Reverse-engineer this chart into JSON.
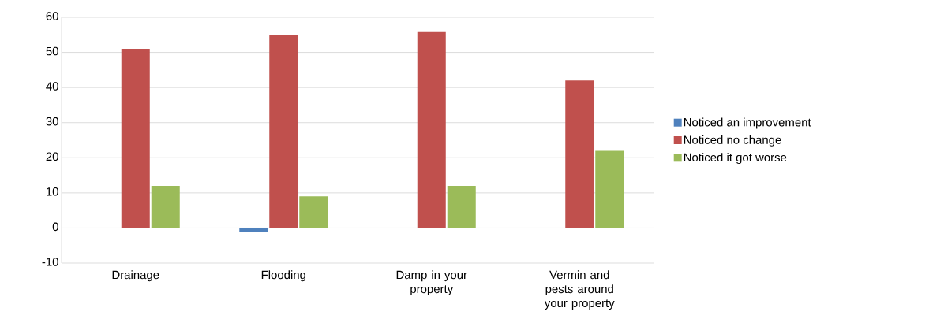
{
  "chart_data": {
    "type": "bar",
    "categories": [
      "Drainage",
      "Flooding",
      "Damp in your property",
      "Vermin and pests around your property"
    ],
    "series": [
      {
        "name": "Noticed an improvement",
        "color": "#4f81bd",
        "values": [
          0,
          -1,
          0,
          0
        ]
      },
      {
        "name": "Noticed no change",
        "color": "#c0504d",
        "values": [
          51,
          55,
          56,
          42
        ]
      },
      {
        "name": "Noticed it got worse",
        "color": "#9bbb59",
        "values": [
          12,
          9,
          12,
          22
        ]
      }
    ],
    "ylim": [
      -10,
      60
    ],
    "yticks": [
      -10,
      0,
      10,
      20,
      30,
      40,
      50,
      60
    ],
    "grid": "y",
    "legend": "right"
  }
}
